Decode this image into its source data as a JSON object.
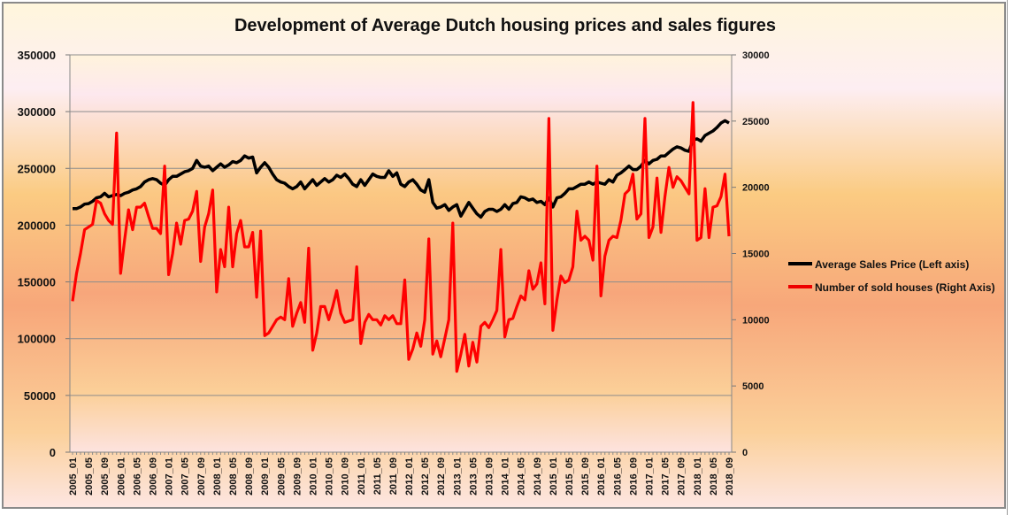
{
  "chart_data": {
    "type": "line",
    "title": "Development of Average Dutch housing prices and sales figures",
    "legend_position": "right",
    "grid": true,
    "colors": {
      "price": "#000000",
      "sales": "#ff0000"
    },
    "left_axis": {
      "ylim": [
        0,
        350000
      ],
      "ticks": [
        "0",
        "50000",
        "100000",
        "150000",
        "200000",
        "250000",
        "300000",
        "350000"
      ]
    },
    "right_axis": {
      "ylim": [
        0,
        30000
      ],
      "ticks": [
        "0",
        "5000",
        "10000",
        "15000",
        "20000",
        "25000",
        "30000"
      ]
    },
    "x_start": "2005_01",
    "x_end": "2018_09",
    "x_tick_labels": [
      "2005_01",
      "2005_05",
      "2005_09",
      "2006_01",
      "2006_05",
      "2006_09",
      "2007_01",
      "2007_05",
      "2007_09",
      "2008_01",
      "2008_05",
      "2008_09",
      "2009_01",
      "2009_05",
      "2009_09",
      "2010_01",
      "2010_05",
      "2010_09",
      "2011_01",
      "2011_05",
      "2011_09",
      "2012_01",
      "2012_05",
      "2012_09",
      "2013_01",
      "2013_05",
      "2013_09",
      "2014_01",
      "2014_05",
      "2014_09",
      "2015_01",
      "2015_05",
      "2015_09",
      "2016_01",
      "2016_05",
      "2016_09",
      "2017_01",
      "2017_05",
      "2017_09",
      "2018_01",
      "2018_05",
      "2018_09"
    ],
    "series": [
      {
        "name": "Average Sales Price (Left axis)",
        "axis": "left",
        "values": [
          214500,
          214500,
          216000,
          218500,
          219000,
          221000,
          224000,
          225000,
          228000,
          225000,
          226000,
          227000,
          226000,
          228000,
          229000,
          231000,
          232000,
          234000,
          238000,
          240000,
          241000,
          240000,
          237000,
          235000,
          240000,
          243000,
          243000,
          245000,
          247000,
          248000,
          250000,
          257000,
          252000,
          251000,
          252000,
          248000,
          251000,
          254000,
          251000,
          253000,
          256000,
          255000,
          257000,
          261000,
          259000,
          260000,
          246000,
          251000,
          255000,
          251000,
          245000,
          240000,
          238000,
          237000,
          234000,
          232000,
          234000,
          238000,
          232000,
          236000,
          240000,
          235000,
          238000,
          241000,
          238000,
          240000,
          244000,
          242000,
          245000,
          241000,
          236000,
          234000,
          240000,
          235000,
          240000,
          245000,
          243000,
          242000,
          242000,
          248000,
          243000,
          246000,
          236000,
          234000,
          238000,
          240000,
          236000,
          231000,
          229000,
          240000,
          220000,
          215000,
          216000,
          218000,
          213000,
          216000,
          218000,
          208000,
          214000,
          220000,
          215000,
          210000,
          207000,
          212000,
          214000,
          214000,
          212000,
          214000,
          218000,
          214000,
          219000,
          220000,
          225000,
          224000,
          222000,
          223000,
          220000,
          221000,
          218000,
          224000,
          216000,
          224000,
          225000,
          228000,
          232000,
          232000,
          234000,
          236000,
          236000,
          238000,
          236000,
          238000,
          237000,
          236000,
          240000,
          238000,
          244000,
          246000,
          249000,
          252000,
          249000,
          249000,
          252000,
          257000,
          254000,
          257000,
          258000,
          261000,
          261000,
          264000,
          267000,
          269000,
          268000,
          266000,
          265000,
          275000,
          276000,
          274000,
          279000,
          281000,
          283000,
          286000,
          290000,
          292000,
          290000
        ]
      },
      {
        "name": "Number of sold houses (Right Axis)",
        "axis": "right",
        "values": [
          11400,
          13500,
          15000,
          16800,
          17000,
          17200,
          19000,
          18800,
          18000,
          17500,
          17200,
          24100,
          13500,
          16000,
          18300,
          16800,
          18500,
          18500,
          18800,
          17800,
          16900,
          16900,
          16500,
          21600,
          13400,
          15000,
          17300,
          15700,
          17500,
          17600,
          18200,
          19700,
          14400,
          17000,
          18000,
          19800,
          12100,
          15300,
          14000,
          18500,
          14000,
          16500,
          17500,
          15500,
          15500,
          16600,
          11700,
          16700,
          8800,
          9000,
          9500,
          10000,
          10200,
          10000,
          13100,
          9500,
          10500,
          11300,
          9800,
          15400,
          7700,
          9000,
          11000,
          11000,
          10000,
          11000,
          12200,
          10500,
          9800,
          9900,
          10000,
          14000,
          8200,
          9800,
          10400,
          10000,
          10000,
          9600,
          10300,
          10000,
          10300,
          9700,
          9700,
          13000,
          7000,
          7800,
          9000,
          8000,
          10000,
          16100,
          7400,
          8400,
          7200,
          8600,
          10000,
          17300,
          6100,
          7400,
          8900,
          6500,
          8300,
          6800,
          9500,
          9800,
          9400,
          10000,
          10700,
          15300,
          8700,
          10000,
          10100,
          11000,
          11800,
          11500,
          13700,
          12300,
          12700,
          14300,
          11200,
          25200,
          9200,
          11500,
          13300,
          12800,
          13000,
          14000,
          18200,
          16000,
          16300,
          16000,
          14500,
          21600,
          11800,
          14800,
          16000,
          16300,
          16200,
          17500,
          19500,
          19800,
          21000,
          17600,
          18000,
          25200,
          16200,
          17000,
          20700,
          16600,
          19300,
          21500,
          20000,
          20800,
          20500,
          20000,
          19500,
          26400,
          16000,
          16200,
          19900,
          16200,
          18500,
          18600,
          19300,
          21000,
          16300
        ]
      }
    ]
  }
}
